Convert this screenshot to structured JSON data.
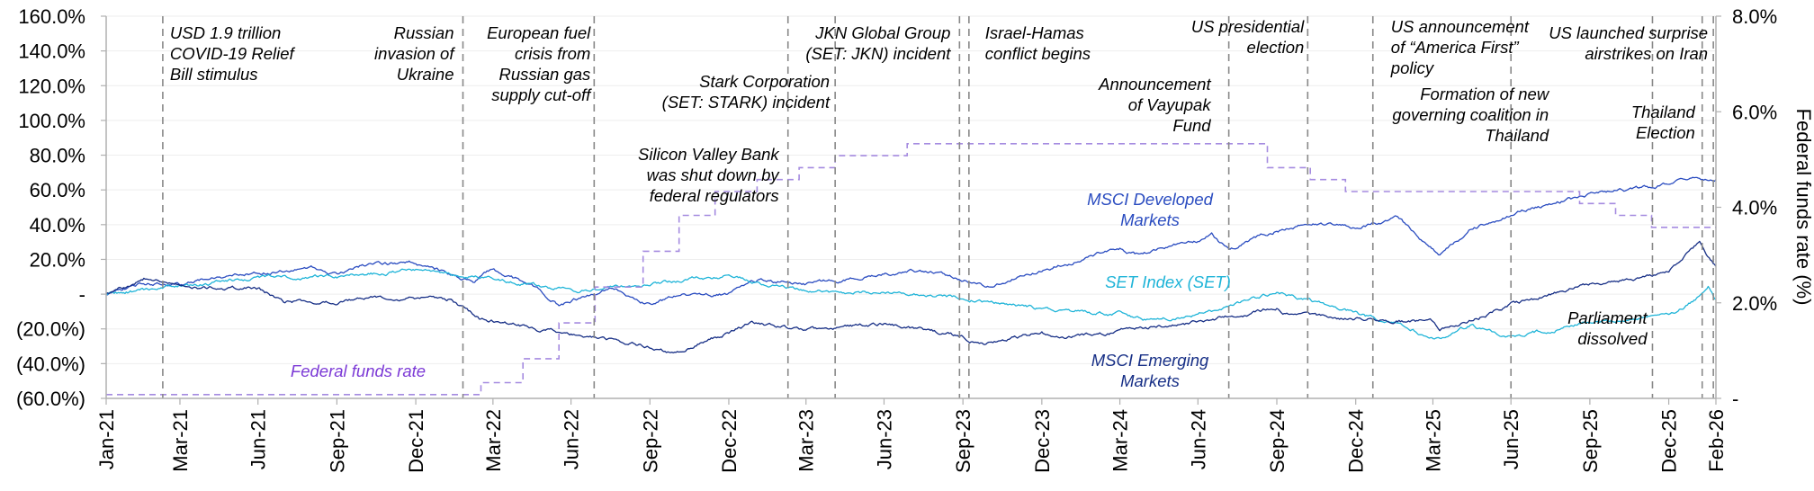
{
  "colors": {
    "msci_dm": "#2a4cc0",
    "set": "#1fb4d8",
    "msci_em": "#172f86",
    "fed": "#a58be0",
    "fed_label": "#7c3ad6",
    "event_line": "#888888",
    "axis": "#b0b0b0"
  },
  "chart_data": {
    "type": "line",
    "title": "",
    "x_start": "2021-01-04",
    "x_end": "2026-02-24",
    "x_ticks": [
      {
        "date": "2021-01-04",
        "label": "Jan-21"
      },
      {
        "date": "2021-03-31",
        "label": "Mar-21"
      },
      {
        "date": "2021-06-30",
        "label": "Jun-21"
      },
      {
        "date": "2021-09-30",
        "label": "Sep-21"
      },
      {
        "date": "2021-12-31",
        "label": "Dec-21"
      },
      {
        "date": "2022-03-31",
        "label": "Mar-22"
      },
      {
        "date": "2022-06-30",
        "label": "Jun-22"
      },
      {
        "date": "2022-09-30",
        "label": "Sep-22"
      },
      {
        "date": "2022-12-31",
        "label": "Dec-22"
      },
      {
        "date": "2023-03-31",
        "label": "Mar-23"
      },
      {
        "date": "2023-06-30",
        "label": "Jun-23"
      },
      {
        "date": "2023-09-30",
        "label": "Sep-23"
      },
      {
        "date": "2023-12-31",
        "label": "Dec-23"
      },
      {
        "date": "2024-03-31",
        "label": "Mar-24"
      },
      {
        "date": "2024-06-30",
        "label": "Jun-24"
      },
      {
        "date": "2024-09-30",
        "label": "Sep-24"
      },
      {
        "date": "2024-12-31",
        "label": "Dec-24"
      },
      {
        "date": "2025-03-31",
        "label": "Mar-25"
      },
      {
        "date": "2025-06-30",
        "label": "Jun-25"
      },
      {
        "date": "2025-09-30",
        "label": "Sep-25"
      },
      {
        "date": "2025-12-31",
        "label": "Dec-25"
      },
      {
        "date": "2026-02-24",
        "label": "Feb-26"
      }
    ],
    "y_left": {
      "label": "",
      "min": -60,
      "max": 160,
      "ticks": [
        {
          "value": 160,
          "label": "160.0%"
        },
        {
          "value": 140,
          "label": "140.0%"
        },
        {
          "value": 120,
          "label": "120.0%"
        },
        {
          "value": 100,
          "label": "100.0%"
        },
        {
          "value": 80,
          "label": "80.0%"
        },
        {
          "value": 60,
          "label": "60.0%"
        },
        {
          "value": 40,
          "label": "40.0%"
        },
        {
          "value": 20,
          "label": "20.0%"
        },
        {
          "value": 0,
          "label": "-"
        },
        {
          "value": -20,
          "label": "(20.0%)"
        },
        {
          "value": -40,
          "label": "(40.0%)"
        },
        {
          "value": -60,
          "label": "(60.0%)"
        }
      ]
    },
    "y_right": {
      "label": "Federal funds rate (%)",
      "min": 0,
      "max": 8,
      "ticks": [
        {
          "value": 8,
          "label": "8.0%"
        },
        {
          "value": 6,
          "label": "6.0%"
        },
        {
          "value": 4,
          "label": "4.0%"
        },
        {
          "value": 2,
          "label": "2.0%"
        },
        {
          "value": 0,
          "label": "-"
        }
      ]
    },
    "series": [
      {
        "name": "MSCI Developed Markets",
        "axis": "left",
        "style": "solid",
        "color_key": "msci_dm",
        "points": [
          [
            "2021-01-04",
            0
          ],
          [
            "2021-02-15",
            6
          ],
          [
            "2021-03-31",
            5
          ],
          [
            "2021-05-10",
            10
          ],
          [
            "2021-06-30",
            12
          ],
          [
            "2021-08-31",
            15
          ],
          [
            "2021-09-30",
            12
          ],
          [
            "2021-11-05",
            17
          ],
          [
            "2021-12-31",
            18
          ],
          [
            "2022-01-31",
            13
          ],
          [
            "2022-03-08",
            6
          ],
          [
            "2022-03-29",
            14
          ],
          [
            "2022-05-12",
            6
          ],
          [
            "2022-06-16",
            -6
          ],
          [
            "2022-08-16",
            3
          ],
          [
            "2022-09-30",
            -6
          ],
          [
            "2022-10-31",
            -1
          ],
          [
            "2022-12-31",
            0
          ],
          [
            "2023-02-02",
            8
          ],
          [
            "2023-03-31",
            6
          ],
          [
            "2023-05-31",
            9
          ],
          [
            "2023-07-31",
            14
          ],
          [
            "2023-09-30",
            8
          ],
          [
            "2023-10-27",
            4
          ],
          [
            "2023-12-31",
            14
          ],
          [
            "2024-03-31",
            26
          ],
          [
            "2024-04-19",
            23
          ],
          [
            "2024-06-30",
            31
          ],
          [
            "2024-07-16",
            35
          ],
          [
            "2024-08-05",
            25
          ],
          [
            "2024-09-30",
            37
          ],
          [
            "2024-11-08",
            41
          ],
          [
            "2024-12-31",
            38
          ],
          [
            "2025-02-18",
            44
          ],
          [
            "2025-04-08",
            23
          ],
          [
            "2025-05-15",
            38
          ],
          [
            "2025-06-30",
            46
          ],
          [
            "2025-09-30",
            57
          ],
          [
            "2025-12-31",
            63
          ],
          [
            "2026-01-28",
            68
          ],
          [
            "2026-02-24",
            66
          ]
        ]
      },
      {
        "name": "SET Index (SET)",
        "axis": "left",
        "style": "solid",
        "color_key": "set",
        "points": [
          [
            "2021-01-04",
            0
          ],
          [
            "2021-03-31",
            5
          ],
          [
            "2021-06-30",
            9
          ],
          [
            "2021-09-30",
            10
          ],
          [
            "2021-12-31",
            14
          ],
          [
            "2022-03-31",
            9
          ],
          [
            "2022-06-30",
            2
          ],
          [
            "2022-09-30",
            6
          ],
          [
            "2022-12-31",
            11
          ],
          [
            "2023-02-28",
            4
          ],
          [
            "2023-03-31",
            2
          ],
          [
            "2023-06-30",
            1
          ],
          [
            "2023-09-30",
            -2
          ],
          [
            "2023-12-31",
            -9
          ],
          [
            "2024-03-31",
            -11
          ],
          [
            "2024-04-30",
            -15
          ],
          [
            "2024-06-30",
            -12
          ],
          [
            "2024-08-31",
            -3
          ],
          [
            "2024-09-30",
            1
          ],
          [
            "2024-12-31",
            -11
          ],
          [
            "2025-02-28",
            -20
          ],
          [
            "2025-04-08",
            -26
          ],
          [
            "2025-05-15",
            -18
          ],
          [
            "2025-06-30",
            -25
          ],
          [
            "2025-09-30",
            -16
          ],
          [
            "2025-12-31",
            -13
          ],
          [
            "2026-01-31",
            -3
          ],
          [
            "2026-02-15",
            6
          ],
          [
            "2026-02-24",
            -3
          ]
        ]
      },
      {
        "name": "MSCI Emerging Markets",
        "axis": "left",
        "style": "solid",
        "color_key": "msci_em",
        "points": [
          [
            "2021-01-04",
            0
          ],
          [
            "2021-02-17",
            9
          ],
          [
            "2021-03-31",
            4
          ],
          [
            "2021-06-30",
            3
          ],
          [
            "2021-07-30",
            -4
          ],
          [
            "2021-09-30",
            -4
          ],
          [
            "2021-12-31",
            -2
          ],
          [
            "2022-02-10",
            -3
          ],
          [
            "2022-03-15",
            -14
          ],
          [
            "2022-06-30",
            -23
          ],
          [
            "2022-09-30",
            -30
          ],
          [
            "2022-10-24",
            -34
          ],
          [
            "2022-12-31",
            -22
          ],
          [
            "2023-01-27",
            -17
          ],
          [
            "2023-03-31",
            -21
          ],
          [
            "2023-06-30",
            -17
          ],
          [
            "2023-09-30",
            -25
          ],
          [
            "2023-10-27",
            -29
          ],
          [
            "2023-12-31",
            -22
          ],
          [
            "2024-01-22",
            -26
          ],
          [
            "2024-03-31",
            -21
          ],
          [
            "2024-06-30",
            -16
          ],
          [
            "2024-09-30",
            -8
          ],
          [
            "2024-10-07",
            -12
          ],
          [
            "2024-12-31",
            -14
          ],
          [
            "2025-03-31",
            -16
          ],
          [
            "2025-04-08",
            -22
          ],
          [
            "2025-06-30",
            -6
          ],
          [
            "2025-09-30",
            6
          ],
          [
            "2025-12-31",
            12
          ],
          [
            "2026-02-05",
            30
          ],
          [
            "2026-02-24",
            16
          ]
        ]
      },
      {
        "name": "Federal funds rate",
        "axis": "right",
        "style": "dashed-step",
        "color_key": "fed",
        "points": [
          [
            "2021-01-04",
            0.08
          ],
          [
            "2022-03-17",
            0.33
          ],
          [
            "2022-05-05",
            0.83
          ],
          [
            "2022-06-16",
            1.58
          ],
          [
            "2022-07-28",
            2.33
          ],
          [
            "2022-09-22",
            3.08
          ],
          [
            "2022-11-03",
            3.83
          ],
          [
            "2022-12-15",
            4.33
          ],
          [
            "2023-02-02",
            4.58
          ],
          [
            "2023-03-23",
            4.83
          ],
          [
            "2023-05-04",
            5.08
          ],
          [
            "2023-07-27",
            5.33
          ],
          [
            "2024-09-19",
            4.83
          ],
          [
            "2024-11-08",
            4.58
          ],
          [
            "2024-12-19",
            4.33
          ],
          [
            "2025-09-18",
            4.08
          ],
          [
            "2025-10-30",
            3.83
          ],
          [
            "2025-12-11",
            3.58
          ],
          [
            "2026-02-24",
            3.58
          ]
        ]
      }
    ],
    "series_labels": [
      {
        "series_key": "msci_dm",
        "lines": [
          "MSCI Developed",
          "Markets"
        ]
      },
      {
        "series_key": "set",
        "lines": [
          "SET Index (SET)"
        ]
      },
      {
        "series_key": "msci_em",
        "lines": [
          "MSCI Emerging",
          "Markets"
        ]
      },
      {
        "series_key": "fed_label",
        "lines": [
          "Federal funds rate"
        ]
      }
    ],
    "events": [
      {
        "date": "2021-03-11",
        "lines": [
          "USD 1.9 trillion",
          "COVID-19 Relief",
          "Bill stimulus"
        ]
      },
      {
        "date": "2022-02-24",
        "lines": [
          "Russian",
          "invasion of",
          "Ukraine"
        ]
      },
      {
        "date": "2022-07-27",
        "lines": [
          "European fuel",
          "crisis from",
          "Russian gas",
          "supply cut-off"
        ]
      },
      {
        "date": "2023-03-10",
        "lines": [
          "Silicon Valley Bank",
          "was shut down by",
          "federal regulators"
        ]
      },
      {
        "date": "2023-05-04",
        "lines": [
          "Stark Corporation",
          "(SET: STARK) incident"
        ]
      },
      {
        "date": "2023-09-26",
        "lines": [
          "JKN Global Group",
          "(SET: JKN) incident"
        ]
      },
      {
        "date": "2023-10-07",
        "lines": [
          "Israel-Hamas",
          "conflict begins"
        ]
      },
      {
        "date": "2024-08-05",
        "lines": [
          "Announcement",
          "of Vayupak",
          "Fund"
        ]
      },
      {
        "date": "2024-11-05",
        "lines": [
          "US presidential",
          "election"
        ]
      },
      {
        "date": "2025-01-20",
        "lines": [
          "US announcement",
          "of “America First”",
          "policy"
        ]
      },
      {
        "date": "2025-06-30",
        "lines": [
          "Formation of new",
          "governing coalition in",
          "Thailand"
        ]
      },
      {
        "date": "2025-12-12",
        "lines": [
          "Parliament",
          "dissolved"
        ]
      },
      {
        "date": "2026-02-08",
        "lines": [
          "Thailand",
          "Election"
        ]
      },
      {
        "date": "2026-02-21",
        "lines": [
          "US launched surprise",
          "airstrikes on Iran"
        ]
      }
    ]
  }
}
